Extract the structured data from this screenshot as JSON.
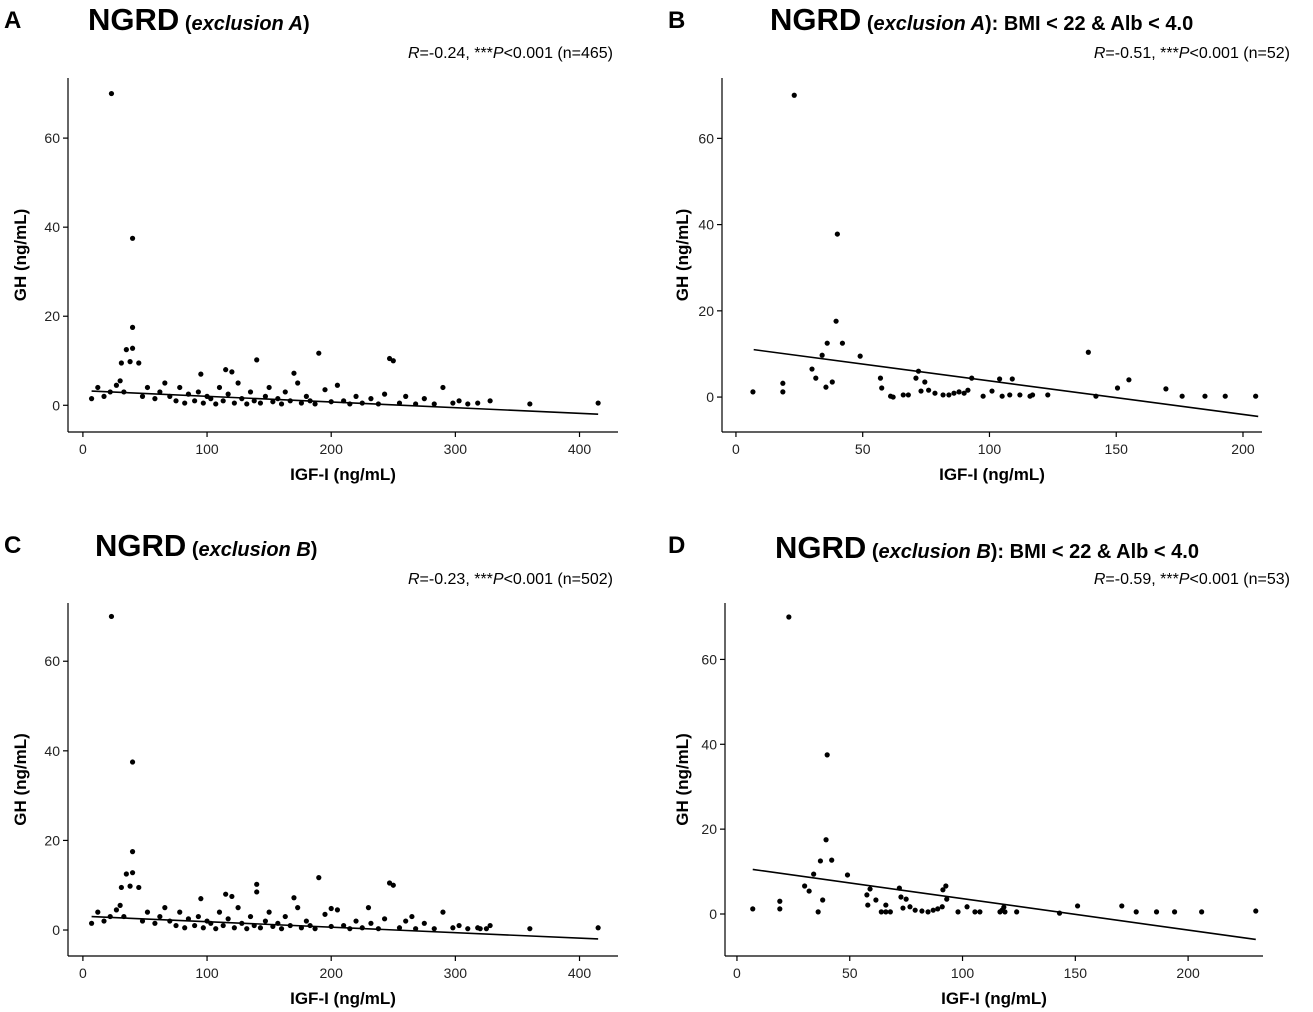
{
  "chart_data": [
    {
      "type": "scatter",
      "panel": "A",
      "title_parts": [
        "NGRD",
        " (",
        "exclusion A",
        ")"
      ],
      "annotation_parts": [
        "R",
        "=-0.24, ***",
        "P",
        "<0.001 (n=465)"
      ],
      "x_label": "IGF-I (ng/mL)",
      "y_label": "GH (ng/mL)",
      "color": "#000000",
      "x": [
        23,
        40,
        40,
        35,
        40,
        38,
        45,
        31,
        30,
        190,
        247,
        250,
        140,
        115,
        120,
        170,
        95,
        290,
        12,
        7,
        17,
        22,
        27,
        33,
        48,
        52,
        58,
        62,
        66,
        70,
        75,
        78,
        82,
        85,
        90,
        93,
        97,
        100,
        103,
        107,
        110,
        113,
        117,
        122,
        125,
        128,
        132,
        135,
        138,
        143,
        147,
        150,
        153,
        157,
        160,
        163,
        167,
        173,
        176,
        180,
        183,
        187,
        195,
        200,
        205,
        210,
        215,
        220,
        225,
        232,
        238,
        243,
        255,
        260,
        268,
        275,
        283,
        298,
        303,
        310,
        318,
        328,
        360,
        415
      ],
      "y": [
        70,
        37.5,
        17.5,
        12.5,
        12.8,
        9.8,
        9.5,
        9.5,
        5.5,
        11.7,
        10.5,
        10,
        10.2,
        8,
        7.5,
        7.2,
        7,
        4,
        4,
        1.5,
        2,
        3,
        4.5,
        3,
        2,
        4,
        1.5,
        3,
        5,
        2,
        1,
        4,
        0.5,
        2.5,
        1,
        3,
        0.5,
        2,
        1.5,
        0.3,
        4,
        1,
        2.5,
        0.5,
        5,
        1.5,
        0.3,
        3,
        1,
        0.5,
        2,
        4,
        0.8,
        1.5,
        0.3,
        3,
        1,
        5,
        0.5,
        2,
        1,
        0.3,
        3.5,
        0.8,
        4.5,
        1,
        0.3,
        2,
        0.5,
        1.5,
        0.3,
        2.5,
        0.5,
        2,
        0.3,
        1.5,
        0.3,
        0.5,
        1,
        0.3,
        0.5,
        1,
        0.3,
        0.5
      ],
      "fit_line": {
        "x": [
          7,
          415
        ],
        "y": [
          3.2,
          -2
        ]
      },
      "xlim": [
        -12,
        431
      ],
      "ylim": [
        -6,
        73.5
      ],
      "xticks": [
        0,
        100,
        200,
        300,
        400
      ],
      "yticks": [
        0,
        20,
        40,
        60
      ]
    },
    {
      "type": "scatter",
      "panel": "B",
      "title_parts": [
        "NGRD",
        " (",
        "exclusion A",
        "): BMI < 22 & Alb < 4.0"
      ],
      "annotation_parts": [
        "R",
        "=-0.51, ***",
        "P",
        "<0.001 (n=52)"
      ],
      "x_label": "IGF-I (ng/mL)",
      "y_label": "GH (ng/mL)",
      "color": "#000000",
      "x": [
        6.7,
        18.5,
        18.5,
        23,
        30,
        31.5,
        34,
        35.5,
        36,
        38,
        40,
        39.5,
        42,
        49,
        57,
        57.5,
        61,
        62,
        66,
        68,
        71,
        72,
        73,
        74.5,
        76,
        78.5,
        81.7,
        84,
        86,
        88,
        90,
        91.5,
        93,
        97.5,
        101,
        104,
        105,
        108,
        112,
        116,
        117,
        123,
        139,
        142,
        150.5,
        155,
        169.6,
        176,
        185,
        193,
        205,
        109
      ],
      "y": [
        1.2,
        3.2,
        1.2,
        70,
        6.5,
        4.4,
        9.7,
        2.3,
        12.5,
        3.5,
        37.8,
        17.6,
        12.5,
        9.5,
        4.4,
        2.1,
        0.2,
        0,
        0.5,
        0.5,
        4.4,
        6,
        1.4,
        3.5,
        1.6,
        0.9,
        0.5,
        0.5,
        0.9,
        1.2,
        0.9,
        1.6,
        4.4,
        0.2,
        1.4,
        4.2,
        0.2,
        0.5,
        0.5,
        0.2,
        0.5,
        0.5,
        10.4,
        0.2,
        2.1,
        4,
        1.9,
        0.2,
        0.2,
        0.2,
        0.2,
        4.2
      ],
      "fit_line": {
        "x": [
          7,
          206
        ],
        "y": [
          11,
          -4.5
        ]
      },
      "xlim": [
        -5.5,
        207.5
      ],
      "ylim": [
        -8.1,
        74
      ],
      "xticks": [
        0,
        50,
        100,
        150,
        200
      ],
      "yticks": [
        0,
        20,
        40,
        60
      ]
    },
    {
      "type": "scatter",
      "panel": "C",
      "title_parts": [
        "NGRD",
        " (",
        "exclusion B",
        ")"
      ],
      "annotation_parts": [
        "R",
        "=-0.23, ***",
        "P",
        "<0.001 (n=502)"
      ],
      "x_label": "IGF-I (ng/mL)",
      "y_label": "GH (ng/mL)",
      "color": "#000000",
      "x": [
        23,
        40,
        40,
        35,
        40,
        38,
        45,
        31,
        30,
        190,
        247,
        250,
        140,
        115,
        120,
        170,
        95,
        290,
        12,
        7,
        17,
        22,
        27,
        33,
        48,
        52,
        58,
        62,
        66,
        70,
        75,
        78,
        82,
        85,
        90,
        93,
        97,
        100,
        103,
        107,
        110,
        113,
        117,
        122,
        125,
        128,
        132,
        135,
        138,
        143,
        147,
        150,
        153,
        157,
        160,
        163,
        167,
        173,
        176,
        180,
        183,
        187,
        195,
        200,
        205,
        210,
        215,
        220,
        225,
        232,
        238,
        243,
        255,
        260,
        268,
        275,
        283,
        298,
        303,
        310,
        318,
        328,
        360,
        415,
        140,
        200,
        230,
        265,
        320,
        325
      ],
      "y": [
        70,
        37.5,
        17.5,
        12.5,
        12.8,
        9.8,
        9.5,
        9.5,
        5.5,
        11.7,
        10.5,
        10,
        10.2,
        8,
        7.5,
        7.2,
        7,
        4,
        4,
        1.5,
        2,
        3,
        4.5,
        3,
        2,
        4,
        1.5,
        3,
        5,
        2,
        1,
        4,
        0.5,
        2.5,
        1,
        3,
        0.5,
        2,
        1.5,
        0.3,
        4,
        1,
        2.5,
        0.5,
        5,
        1.5,
        0.3,
        3,
        1,
        0.5,
        2,
        4,
        0.8,
        1.5,
        0.3,
        3,
        1,
        5,
        0.5,
        2,
        1,
        0.3,
        3.5,
        0.8,
        4.5,
        1,
        0.3,
        2,
        0.5,
        1.5,
        0.3,
        2.5,
        0.5,
        2,
        0.3,
        1.5,
        0.3,
        0.5,
        1,
        0.3,
        0.5,
        1,
        0.3,
        0.5,
        8.5,
        4.8,
        5,
        3,
        0.3,
        0.3
      ],
      "fit_line": {
        "x": [
          7,
          415
        ],
        "y": [
          3,
          -2
        ]
      },
      "xlim": [
        -12,
        431
      ],
      "ylim": [
        -5.8,
        73
      ],
      "xticks": [
        0,
        100,
        200,
        300,
        400
      ],
      "yticks": [
        0,
        20,
        40,
        60
      ]
    },
    {
      "type": "scatter",
      "panel": "D",
      "title_parts": [
        "NGRD",
        " (",
        "exclusion B",
        "): BMI < 22 & Alb < 4.0"
      ],
      "annotation_parts": [
        "R",
        "=-0.59, ***",
        "P",
        "<0.001 (n=53)"
      ],
      "x_label": "IGF-I (ng/mL)",
      "y_label": "GH (ng/mL)",
      "color": "#000000",
      "x": [
        7,
        19,
        19,
        23,
        30,
        32,
        34,
        36,
        37,
        38,
        40,
        39.5,
        42,
        49,
        57.6,
        58,
        61.6,
        64,
        66,
        68,
        72,
        72.7,
        73.6,
        75,
        76.7,
        79,
        82,
        84.7,
        87,
        89,
        91,
        92.6,
        93,
        98,
        102,
        105.5,
        107.7,
        116.6,
        117.5,
        118.8,
        124,
        143,
        151,
        170.6,
        177,
        186,
        194,
        206,
        230,
        118.3,
        91.3,
        59,
        66
      ],
      "y": [
        1.2,
        3,
        1.2,
        70,
        6.6,
        5.4,
        9.4,
        0.5,
        12.5,
        3.3,
        37.5,
        17.5,
        12.7,
        9.2,
        4.5,
        2.1,
        3.3,
        0.5,
        0.5,
        0.5,
        6.1,
        4,
        1.4,
        3.5,
        1.7,
        0.9,
        0.7,
        0.5,
        0.9,
        1.2,
        1.7,
        6.6,
        3.5,
        0.5,
        1.7,
        0.5,
        0.5,
        0.5,
        0.9,
        0.5,
        0.5,
        0.2,
        1.9,
        1.9,
        0.5,
        0.5,
        0.5,
        0.5,
        0.7,
        1.6,
        5.7,
        5.9,
        2.1
      ],
      "fit_line": {
        "x": [
          7,
          230
        ],
        "y": [
          10.5,
          -6
        ]
      },
      "xlim": [
        -5.3,
        233.2
      ],
      "ylim": [
        -9.9,
        73.3
      ],
      "xticks": [
        0,
        50,
        100,
        150,
        200
      ],
      "yticks": [
        0,
        20,
        40,
        60
      ]
    }
  ]
}
